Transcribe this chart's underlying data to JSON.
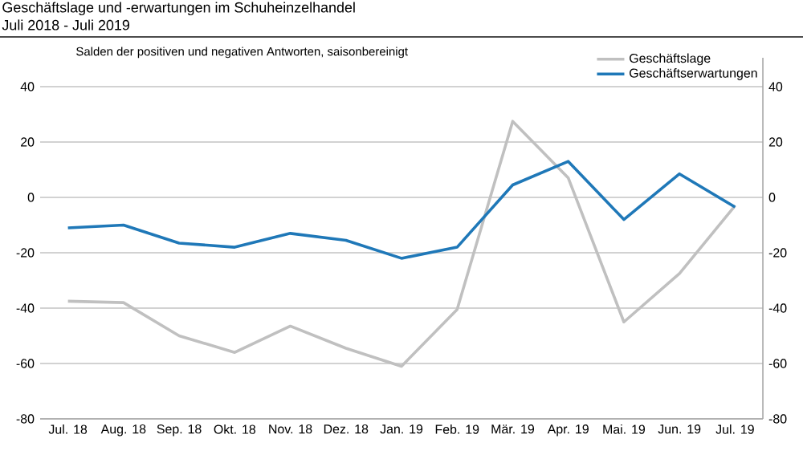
{
  "chart_data": {
    "type": "line",
    "title": "Geschäftslage und -erwartungen im Schuheinzelhandel",
    "subtitle": "Juli 2018 - Juli 2019",
    "annotations": [
      "Salden der positiven und negativen Antworten,  saisonbereinigt"
    ],
    "categories": [
      "Jul. 18",
      "Aug. 18",
      "Sep. 18",
      "Okt. 18",
      "Nov. 18",
      "Dez. 18",
      "Jan. 19",
      "Feb. 19",
      "Mär. 19",
      "Apr. 19",
      "Mai. 19",
      "Jun. 19",
      "Jul. 19"
    ],
    "series": [
      {
        "name": "Geschäftslage",
        "color": "#c0c0c0",
        "values": [
          -37.5,
          -38,
          -50,
          -56,
          -46.5,
          -54.5,
          -61,
          -40.5,
          27.5,
          7,
          -45,
          -27.5,
          -3
        ]
      },
      {
        "name": "Geschäftserwartungen",
        "color": "#1f78b8",
        "values": [
          -11,
          -10,
          -16.5,
          -18,
          -13,
          -15.5,
          -22,
          -18,
          4.5,
          13,
          -8,
          8.5,
          -3.5
        ]
      }
    ],
    "ylim": [
      -80,
      40
    ],
    "yticks": [
      -80,
      -60,
      -40,
      -20,
      0,
      20,
      40
    ],
    "y2lim": [
      -80,
      40
    ],
    "y2ticks": [
      -80,
      -60,
      -40,
      -20,
      0,
      20,
      40
    ],
    "grid": "y",
    "legend": "top right",
    "marker": "none",
    "line_style": "solid"
  }
}
